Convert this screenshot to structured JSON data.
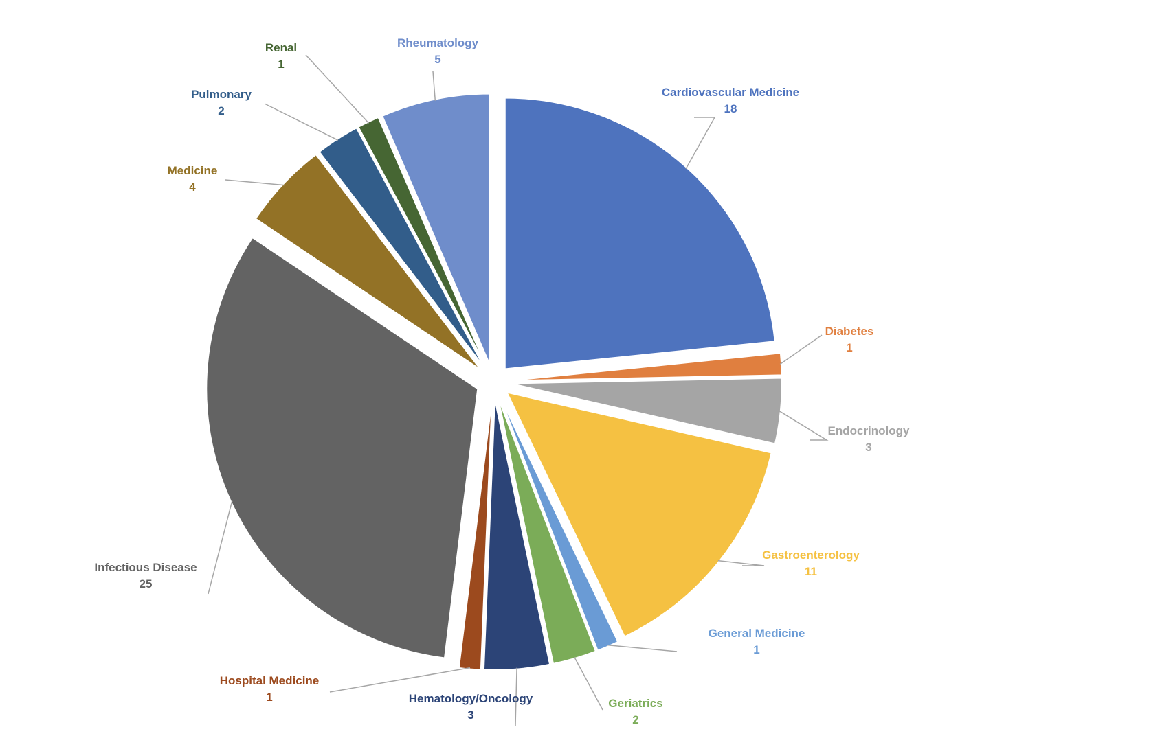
{
  "chart_data": {
    "type": "pie",
    "title": "",
    "slices": [
      {
        "label": "Cardiovascular Medicine",
        "value": 18,
        "color": "#4E73BE"
      },
      {
        "label": "Diabetes",
        "value": 1,
        "color": "#E07F3F"
      },
      {
        "label": "Endocrinology",
        "value": 3,
        "color": "#A5A5A5"
      },
      {
        "label": "Gastroenterology",
        "value": 11,
        "color": "#F5C142"
      },
      {
        "label": "General Medicine",
        "value": 1,
        "color": "#6A9BD5"
      },
      {
        "label": "Geriatrics",
        "value": 2,
        "color": "#7BAC58"
      },
      {
        "label": "Hematology/Oncology",
        "value": 3,
        "color": "#2C4477"
      },
      {
        "label": "Hospital Medicine",
        "value": 1,
        "color": "#9C4A1E"
      },
      {
        "label": "Infectious Disease",
        "value": 25,
        "color": "#636363"
      },
      {
        "label": "Medicine",
        "value": 4,
        "color": "#937226"
      },
      {
        "label": "Pulmonary",
        "value": 2,
        "color": "#325D8A"
      },
      {
        "label": "Renal",
        "value": 1,
        "color": "#466633"
      },
      {
        "label": "Rheumatology",
        "value": 5,
        "color": "#6F8DCB"
      }
    ],
    "legend": "none",
    "data_labels": "outside with leader lines"
  }
}
